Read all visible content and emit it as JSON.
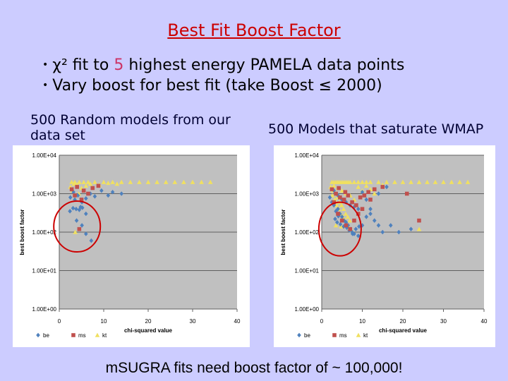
{
  "slide": {
    "title": "Best Fit Boost Factor",
    "bullet1": {
      "pre": "χ² fit to ",
      "num": "5",
      "post": " highest energy PAMELA data points"
    },
    "bullet2": "Vary boost for best fit  (take Boost ≤ 2000)",
    "bullet_marker": "•",
    "caption_left": "500 Random models from our data set",
    "caption_right": "500 Models that saturate WMAP",
    "footer": "mSUGRA fits need boost factor of ~ 100,000!",
    "colors": {
      "title": "#cc0000",
      "highlight": "#cc3366",
      "circle": "#cc0000",
      "background": "#ccccff"
    }
  },
  "chart_data": [
    {
      "type": "scatter",
      "xlabel": "chi-squared value",
      "ylabel": "best boost factor",
      "xlim": [
        0,
        40
      ],
      "ylim": [
        1,
        10000
      ],
      "yscale": "log",
      "xticks": [
        0,
        10,
        20,
        30,
        40
      ],
      "yticks": [
        1,
        10,
        100,
        1000,
        10000
      ],
      "ytick_labels": [
        "1.00E+00",
        "1.00E+01",
        "1.00E+02",
        "1.00E+03",
        "1.00E+04"
      ],
      "grid": true,
      "legend": "bottom-left",
      "highlight_circle": {
        "x": 4,
        "y": 140
      },
      "series": [
        {
          "name": "be",
          "marker": "diamond",
          "color": "#4f81bd",
          "points": [
            [
              2.5,
              800
            ],
            [
              3.5,
              700
            ],
            [
              4.2,
              900
            ],
            [
              5.1,
              600
            ],
            [
              6,
              750
            ],
            [
              7,
              1000
            ],
            [
              8,
              850
            ],
            [
              9.5,
              1200
            ],
            [
              11,
              900
            ],
            [
              12,
              1100
            ],
            [
              14,
              1000
            ],
            [
              4.8,
              450
            ],
            [
              3.2,
              1100
            ],
            [
              2.4,
              350
            ],
            [
              3.1,
              420
            ],
            [
              3.8,
              400
            ],
            [
              4.5,
              380
            ],
            [
              5.2,
              430
            ],
            [
              6,
              300
            ],
            [
              3.9,
              200
            ],
            [
              5.1,
              150
            ],
            [
              6,
              90
            ],
            [
              7.2,
              60
            ]
          ]
        },
        {
          "name": "ms",
          "marker": "square",
          "color": "#c0504d",
          "points": [
            [
              2.8,
              1300
            ],
            [
              4,
              1500
            ],
            [
              5.5,
              1200
            ],
            [
              7.5,
              1400
            ],
            [
              8.8,
              1600
            ],
            [
              3.5,
              900
            ],
            [
              5,
              700
            ],
            [
              4.5,
              120
            ],
            [
              6.5,
              1000
            ]
          ]
        },
        {
          "name": "kt",
          "marker": "triangle",
          "color": "#f0e060",
          "points": [
            [
              2.8,
              2000
            ],
            [
              3.5,
              2000
            ],
            [
              4.5,
              2000
            ],
            [
              5.5,
              2000
            ],
            [
              6.5,
              2000
            ],
            [
              8,
              2000
            ],
            [
              10,
              2000
            ],
            [
              12,
              2000
            ],
            [
              14,
              2000
            ],
            [
              16,
              2000
            ],
            [
              18,
              2000
            ],
            [
              20,
              2000
            ],
            [
              22,
              2000
            ],
            [
              24,
              2000
            ],
            [
              26,
              2000
            ],
            [
              28,
              2000
            ],
            [
              30,
              2000
            ],
            [
              32,
              2000
            ],
            [
              34,
              2000
            ],
            [
              2.5,
              1500
            ],
            [
              3,
              1200
            ],
            [
              4,
              1700
            ],
            [
              4.4,
              1000
            ],
            [
              5,
              1400
            ],
            [
              6,
              1600
            ],
            [
              3.3,
              1800
            ],
            [
              7,
              1800
            ],
            [
              9,
              1700
            ],
            [
              11,
              1900
            ],
            [
              13,
              1800
            ],
            [
              3.6,
              100
            ]
          ]
        }
      ]
    },
    {
      "type": "scatter",
      "xlabel": "chi-squared value",
      "ylabel": "best boost factor",
      "xlim": [
        0,
        40
      ],
      "ylim": [
        1,
        10000
      ],
      "yscale": "log",
      "xticks": [
        0,
        10,
        20,
        30,
        40
      ],
      "yticks": [
        1,
        10,
        100,
        1000,
        10000
      ],
      "ytick_labels": [
        "1.00E+00",
        "1.00E+01",
        "1.00E+02",
        "1.00E+03",
        "1.00E+04"
      ],
      "grid": true,
      "legend": "bottom-left",
      "highlight_circle": {
        "x": 4.5,
        "y": 120
      },
      "series": [
        {
          "name": "be",
          "marker": "diamond",
          "color": "#4f81bd",
          "points": [
            [
              2,
              800
            ],
            [
              2.5,
              600
            ],
            [
              3,
              500
            ],
            [
              3.5,
              350
            ],
            [
              4,
              400
            ],
            [
              4.5,
              300
            ],
            [
              5,
              250
            ],
            [
              5.5,
              200
            ],
            [
              6,
              180
            ],
            [
              6.5,
              150
            ],
            [
              7,
              120
            ],
            [
              7.5,
              100
            ],
            [
              8,
              90
            ],
            [
              9,
              80
            ],
            [
              10,
              150
            ],
            [
              11,
              250
            ],
            [
              12,
              300
            ],
            [
              13,
              200
            ],
            [
              14,
              150
            ],
            [
              15,
              100
            ],
            [
              17,
              150
            ],
            [
              19,
              100
            ],
            [
              22,
              120
            ],
            [
              3,
              1200
            ],
            [
              4,
              900
            ],
            [
              5,
              700
            ],
            [
              6,
              600
            ],
            [
              7,
              500
            ],
            [
              8,
              450
            ],
            [
              9,
              400
            ],
            [
              10,
              1100
            ],
            [
              11,
              700
            ],
            [
              12,
              400
            ],
            [
              14,
              1000
            ],
            [
              16,
              1500
            ],
            [
              3.8,
              180
            ],
            [
              4.6,
              160
            ],
            [
              5.4,
              140
            ],
            [
              6.2,
              130
            ],
            [
              6.8,
              110
            ],
            [
              7.6,
              90
            ],
            [
              8.4,
              120
            ],
            [
              9.2,
              140
            ],
            [
              3.3,
              220
            ],
            [
              4.1,
              260
            ]
          ]
        },
        {
          "name": "ms",
          "marker": "square",
          "color": "#c0504d",
          "points": [
            [
              2.5,
              1300
            ],
            [
              3.5,
              1000
            ],
            [
              4.5,
              800
            ],
            [
              5.5,
              700
            ],
            [
              6.5,
              900
            ],
            [
              7.5,
              600
            ],
            [
              8.5,
              500
            ],
            [
              9.5,
              800
            ],
            [
              10.5,
              900
            ],
            [
              11.5,
              1100
            ],
            [
              13,
              1300
            ],
            [
              15,
              1500
            ],
            [
              21,
              1000
            ],
            [
              24,
              200
            ],
            [
              3,
              600
            ],
            [
              4,
              300
            ],
            [
              5,
              200
            ],
            [
              6,
              150
            ],
            [
              7,
              120
            ],
            [
              8,
              200
            ],
            [
              9,
              300
            ],
            [
              10,
              400
            ],
            [
              4.2,
              1400
            ],
            [
              5.8,
              1100
            ],
            [
              12,
              700
            ]
          ]
        },
        {
          "name": "kt",
          "marker": "triangle",
          "color": "#f0e060",
          "points": [
            [
              2.5,
              2000
            ],
            [
              3,
              2000
            ],
            [
              3.5,
              2000
            ],
            [
              4,
              2000
            ],
            [
              4.5,
              2000
            ],
            [
              5,
              2000
            ],
            [
              5.5,
              2000
            ],
            [
              6,
              2000
            ],
            [
              6.5,
              2000
            ],
            [
              7,
              2000
            ],
            [
              8,
              2000
            ],
            [
              9,
              2000
            ],
            [
              10,
              2000
            ],
            [
              11,
              2000
            ],
            [
              12,
              2000
            ],
            [
              14,
              2000
            ],
            [
              16,
              2000
            ],
            [
              18,
              2000
            ],
            [
              20,
              2000
            ],
            [
              22,
              2000
            ],
            [
              24,
              2000
            ],
            [
              26,
              2000
            ],
            [
              28,
              2000
            ],
            [
              30,
              2000
            ],
            [
              32,
              2000
            ],
            [
              34,
              2000
            ],
            [
              36,
              2000
            ],
            [
              2.2,
              1500
            ],
            [
              2.8,
              1200
            ],
            [
              3.4,
              1000
            ],
            [
              3.9,
              800
            ],
            [
              4.4,
              600
            ],
            [
              4.9,
              500
            ],
            [
              5.4,
              400
            ],
            [
              5.9,
              300
            ],
            [
              6.4,
              250
            ],
            [
              6.9,
              200
            ],
            [
              2.6,
              900
            ],
            [
              3.2,
              700
            ],
            [
              3.7,
              500
            ],
            [
              4.2,
              400
            ],
            [
              4.7,
              300
            ],
            [
              5.2,
              250
            ],
            [
              5.7,
              200
            ],
            [
              6.2,
              150
            ],
            [
              6.8,
              130
            ],
            [
              7.4,
              110
            ],
            [
              3,
              1600
            ],
            [
              4,
              1400
            ],
            [
              5,
              1200
            ],
            [
              6,
              1000
            ],
            [
              7,
              900
            ],
            [
              8,
              700
            ],
            [
              9,
              1500
            ],
            [
              10,
              1200
            ],
            [
              11,
              1600
            ],
            [
              12,
              1300
            ],
            [
              13,
              1000
            ],
            [
              15,
              1700
            ],
            [
              3.5,
              150
            ],
            [
              4.8,
              140
            ],
            [
              24,
              120
            ]
          ]
        }
      ]
    }
  ]
}
